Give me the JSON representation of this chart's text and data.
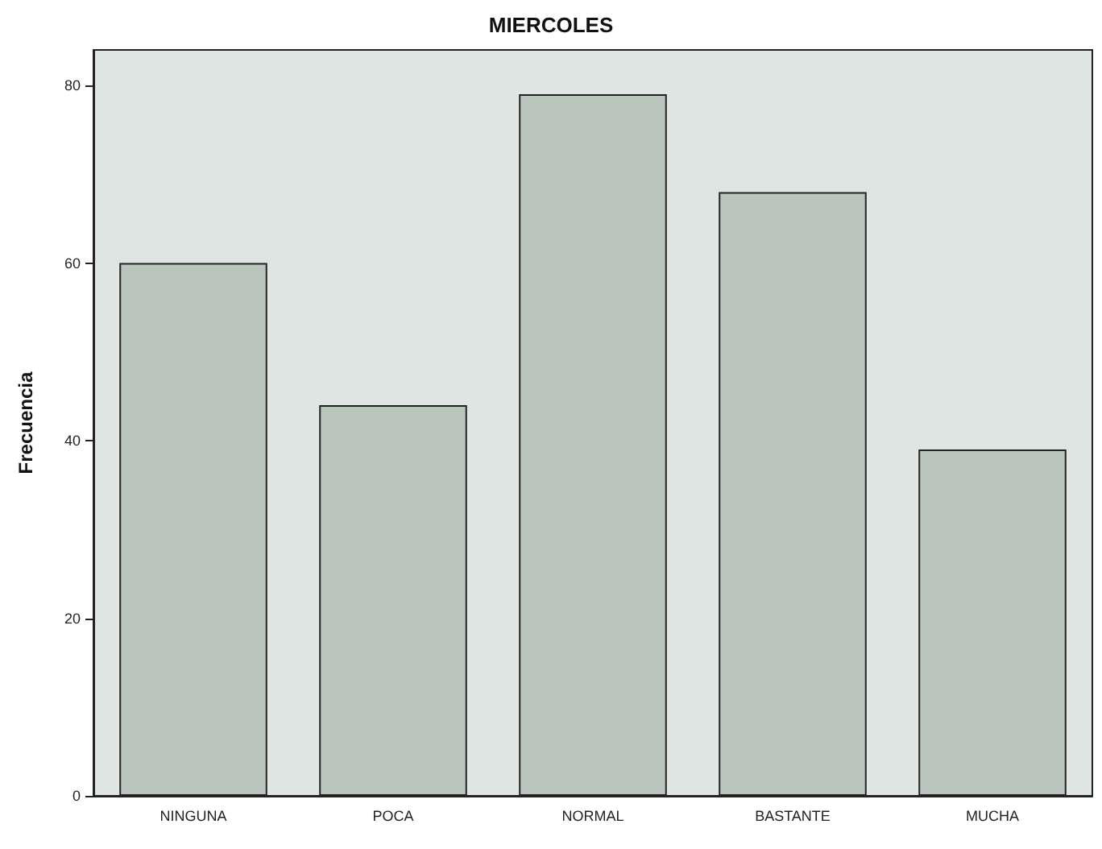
{
  "chart_data": {
    "type": "bar",
    "title": "MIERCOLES",
    "ylabel": "Frecuencia",
    "categories": [
      "NINGUNA",
      "POCA",
      "NORMAL",
      "BASTANTE",
      "MUCHA"
    ],
    "values": [
      60,
      44,
      79,
      68,
      39
    ],
    "color": "#b9c5bd",
    "ylim": [
      0,
      84
    ],
    "yticks": [
      0,
      20,
      40,
      60,
      80
    ],
    "grid": false
  }
}
